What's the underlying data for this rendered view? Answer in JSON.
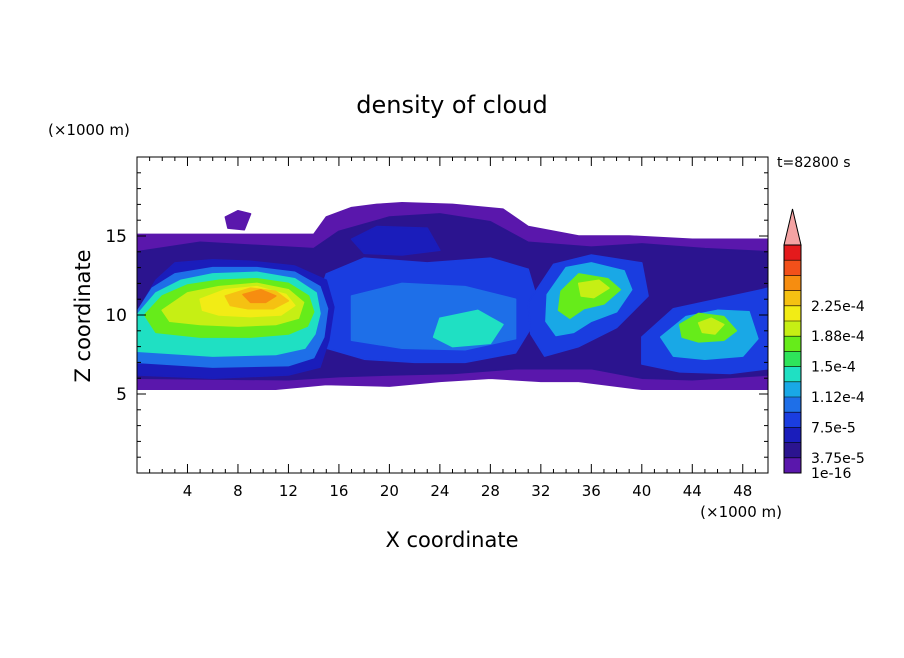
{
  "chart_data": {
    "type": "heatmap",
    "title": "density of cloud",
    "time_label": "t=82800 s",
    "xlabel": "X coordinate",
    "ylabel": "Z coordinate",
    "x_unit": "(×1000 m)",
    "z_unit": "(×1000 m)",
    "xlim": [
      0,
      50
    ],
    "ylim": [
      0,
      20
    ],
    "x_ticks": [
      4,
      8,
      12,
      16,
      20,
      24,
      28,
      32,
      36,
      40,
      44,
      48
    ],
    "y_ticks": [
      5,
      10,
      15
    ],
    "colorbar": {
      "labels": [
        "2.25e-4",
        "1.88e-4",
        "1.5e-4",
        "1.12e-4",
        "7.5e-5",
        "3.75e-5",
        "1e-16"
      ],
      "label_levels": [
        11,
        9,
        7,
        5,
        3,
        1,
        0
      ],
      "colors": [
        "#5a17ac",
        "#2b148f",
        "#1a1dbb",
        "#1a3de0",
        "#1e6fe8",
        "#19a8e6",
        "#1fe0c3",
        "#2ee45a",
        "#66ec1a",
        "#c6ef14",
        "#f2ec15",
        "#f5c112",
        "#f68d10",
        "#f2501a",
        "#e41a1c"
      ],
      "over_color": "#f4a3a3"
    },
    "regions": [
      {
        "name": "envelope",
        "level": 0,
        "points": [
          [
            0,
            15.1
          ],
          [
            14,
            15.1
          ],
          [
            15,
            16.2
          ],
          [
            17,
            16.8
          ],
          [
            19,
            17.0
          ],
          [
            21,
            17.1
          ],
          [
            25,
            17.0
          ],
          [
            29,
            16.7
          ],
          [
            31,
            15.6
          ],
          [
            35,
            15.0
          ],
          [
            39,
            15.0
          ],
          [
            44,
            14.8
          ],
          [
            50,
            14.8
          ],
          [
            50,
            5.3
          ],
          [
            40,
            5.3
          ],
          [
            35,
            5.8
          ],
          [
            32,
            5.8
          ],
          [
            28,
            6.0
          ],
          [
            24,
            5.8
          ],
          [
            20,
            5.5
          ],
          [
            15,
            5.6
          ],
          [
            11,
            5.3
          ],
          [
            0,
            5.3
          ]
        ]
      },
      {
        "name": "cloud-top-bump",
        "level": 0,
        "points": [
          [
            7,
            16.2
          ],
          [
            8,
            16.6
          ],
          [
            9,
            16.4
          ],
          [
            8.5,
            15.4
          ],
          [
            7.2,
            15.5
          ]
        ]
      },
      {
        "name": "mid-layer",
        "level": 1,
        "points": [
          [
            0,
            14.0
          ],
          [
            5,
            14.6
          ],
          [
            14,
            14.2
          ],
          [
            16,
            15.3
          ],
          [
            20,
            16.2
          ],
          [
            24,
            16.4
          ],
          [
            28,
            15.9
          ],
          [
            31,
            14.6
          ],
          [
            36,
            14.3
          ],
          [
            40,
            14.5
          ],
          [
            45,
            14.2
          ],
          [
            50,
            14.0
          ],
          [
            50,
            6.2
          ],
          [
            44,
            5.9
          ],
          [
            40,
            6.0
          ],
          [
            36,
            6.6
          ],
          [
            30,
            6.6
          ],
          [
            25,
            6.3
          ],
          [
            20,
            6.2
          ],
          [
            16,
            6.1
          ],
          [
            12,
            5.9
          ],
          [
            0,
            6.0
          ]
        ]
      },
      {
        "name": "upper-blue-patch",
        "level": 2,
        "points": [
          [
            17,
            14.8
          ],
          [
            19,
            15.6
          ],
          [
            23,
            15.5
          ],
          [
            24,
            14.1
          ],
          [
            21,
            13.8
          ],
          [
            18,
            13.9
          ]
        ]
      },
      {
        "name": "central-convective",
        "level": 3,
        "points": [
          [
            15,
            12.6
          ],
          [
            18,
            13.6
          ],
          [
            23,
            13.3
          ],
          [
            28,
            13.6
          ],
          [
            31,
            12.9
          ],
          [
            32,
            10.2
          ],
          [
            30,
            7.6
          ],
          [
            26,
            7.0
          ],
          [
            22,
            7.0
          ],
          [
            18,
            7.2
          ],
          [
            15,
            7.9
          ],
          [
            14,
            10.2
          ]
        ]
      },
      {
        "name": "east-tower-shell",
        "level": 3,
        "points": [
          [
            31,
            10.8
          ],
          [
            33,
            13.2
          ],
          [
            36,
            13.8
          ],
          [
            40,
            13.3
          ],
          [
            40.5,
            11.2
          ],
          [
            38,
            9.2
          ],
          [
            35,
            8.0
          ],
          [
            32.3,
            7.4
          ],
          [
            31.2,
            8.8
          ]
        ]
      },
      {
        "name": "central-mixed",
        "level": 4,
        "points": [
          [
            17,
            11.2
          ],
          [
            21,
            12.0
          ],
          [
            26,
            11.8
          ],
          [
            30,
            11.0
          ],
          [
            30,
            8.5
          ],
          [
            26,
            7.8
          ],
          [
            21,
            7.9
          ],
          [
            17,
            8.4
          ]
        ]
      },
      {
        "name": "central-cyan-core",
        "level": 6,
        "points": [
          [
            24,
            9.8
          ],
          [
            27,
            10.3
          ],
          [
            29,
            9.4
          ],
          [
            28,
            8.2
          ],
          [
            25,
            8.0
          ],
          [
            23.5,
            8.6
          ]
        ]
      },
      {
        "name": "far-east-cell",
        "level": 3,
        "points": [
          [
            40,
            8.6
          ],
          [
            42.5,
            10.4
          ],
          [
            46,
            11.0
          ],
          [
            49.5,
            11.6
          ],
          [
            50,
            11.7
          ],
          [
            50,
            6.6
          ],
          [
            47,
            6.3
          ],
          [
            43,
            6.4
          ],
          [
            40,
            6.9
          ]
        ]
      },
      {
        "name": "far-east-cell-inner",
        "level": 5,
        "points": [
          [
            41.5,
            8.6
          ],
          [
            43.5,
            9.9
          ],
          [
            46,
            10.3
          ],
          [
            48.5,
            10.2
          ],
          [
            49.2,
            8.5
          ],
          [
            48,
            7.4
          ],
          [
            45,
            7.2
          ],
          [
            42.5,
            7.4
          ]
        ]
      },
      {
        "name": "far-east-cell-core",
        "level": 8,
        "points": [
          [
            43,
            9.4
          ],
          [
            44.5,
            10.1
          ],
          [
            46.5,
            9.9
          ],
          [
            47.5,
            9.0
          ],
          [
            46.5,
            8.4
          ],
          [
            44.5,
            8.3
          ],
          [
            43.2,
            8.6
          ]
        ]
      },
      {
        "name": "far-east-cell-peak",
        "level": 9,
        "points": [
          [
            44.5,
            9.5
          ],
          [
            45.5,
            9.8
          ],
          [
            46.5,
            9.4
          ],
          [
            45.8,
            8.8
          ],
          [
            44.8,
            8.9
          ]
        ]
      },
      {
        "name": "east-tower",
        "level": 5,
        "points": [
          [
            32.5,
            11.3
          ],
          [
            34,
            13.0
          ],
          [
            36,
            13.3
          ],
          [
            38.6,
            12.8
          ],
          [
            39.2,
            11.6
          ],
          [
            38,
            10.2
          ],
          [
            36,
            9.6
          ],
          [
            34.6,
            8.9
          ],
          [
            33.2,
            8.7
          ],
          [
            32.4,
            9.6
          ]
        ]
      },
      {
        "name": "east-tower-core",
        "level": 8,
        "points": [
          [
            33.6,
            11.5
          ],
          [
            35,
            12.6
          ],
          [
            37.3,
            12.3
          ],
          [
            38.3,
            11.6
          ],
          [
            37,
            10.7
          ],
          [
            35.4,
            10.4
          ],
          [
            34.3,
            9.8
          ],
          [
            33.4,
            10.3
          ]
        ]
      },
      {
        "name": "east-tower-peak",
        "level": 9,
        "points": [
          [
            35,
            12.0
          ],
          [
            36.6,
            12.2
          ],
          [
            37.4,
            11.7
          ],
          [
            36.2,
            11.1
          ],
          [
            35.2,
            11.2
          ]
        ]
      },
      {
        "name": "west-cell-shell",
        "level": 2,
        "points": [
          [
            0,
            10.2
          ],
          [
            1.5,
            12.2
          ],
          [
            3,
            13.3
          ],
          [
            6,
            13.5
          ],
          [
            9,
            13.4
          ],
          [
            12.5,
            13.1
          ],
          [
            15,
            12.2
          ],
          [
            15.6,
            10.5
          ],
          [
            15.2,
            8.4
          ],
          [
            14.5,
            6.7
          ],
          [
            12,
            6.2
          ],
          [
            6,
            6.0
          ],
          [
            0,
            6.2
          ]
        ]
      },
      {
        "name": "west-cell-l4",
        "level": 4,
        "points": [
          [
            0,
            10.2
          ],
          [
            1.2,
            11.7
          ],
          [
            3,
            12.6
          ],
          [
            6,
            13.0
          ],
          [
            9.5,
            13.0
          ],
          [
            12.5,
            12.7
          ],
          [
            14.5,
            11.8
          ],
          [
            15.1,
            10.4
          ],
          [
            14.8,
            8.6
          ],
          [
            14,
            7.3
          ],
          [
            12,
            6.8
          ],
          [
            6,
            6.7
          ],
          [
            0,
            7.0
          ]
        ]
      },
      {
        "name": "west-cell-l6",
        "level": 6,
        "points": [
          [
            0,
            10.0
          ],
          [
            1.5,
            11.4
          ],
          [
            3.5,
            12.2
          ],
          [
            6,
            12.6
          ],
          [
            9.5,
            12.7
          ],
          [
            12.5,
            12.3
          ],
          [
            14.2,
            11.4
          ],
          [
            14.5,
            10.1
          ],
          [
            14.1,
            8.8
          ],
          [
            13.3,
            7.9
          ],
          [
            11,
            7.5
          ],
          [
            6,
            7.4
          ],
          [
            0,
            7.7
          ]
        ]
      },
      {
        "name": "west-cell-l8",
        "level": 8,
        "points": [
          [
            0.6,
            10.0
          ],
          [
            2,
            11.2
          ],
          [
            4,
            11.9
          ],
          [
            6.5,
            12.2
          ],
          [
            9.5,
            12.3
          ],
          [
            12,
            12.0
          ],
          [
            13.6,
            11.2
          ],
          [
            14,
            10.2
          ],
          [
            13.5,
            9.3
          ],
          [
            12,
            8.8
          ],
          [
            9,
            8.6
          ],
          [
            5,
            8.6
          ],
          [
            1.5,
            8.9
          ]
        ]
      },
      {
        "name": "west-cell-l9",
        "level": 9,
        "points": [
          [
            2,
            10.3
          ],
          [
            4,
            11.4
          ],
          [
            6.5,
            11.8
          ],
          [
            9.5,
            12.0
          ],
          [
            12,
            11.6
          ],
          [
            13.2,
            10.8
          ],
          [
            12.8,
            9.8
          ],
          [
            11,
            9.4
          ],
          [
            8,
            9.3
          ],
          [
            5,
            9.4
          ],
          [
            2.6,
            9.6
          ]
        ]
      },
      {
        "name": "west-cell-l10",
        "level": 10,
        "points": [
          [
            5,
            11.0
          ],
          [
            7,
            11.6
          ],
          [
            9.5,
            11.8
          ],
          [
            11.8,
            11.3
          ],
          [
            12.5,
            10.6
          ],
          [
            11.4,
            10.0
          ],
          [
            9,
            9.9
          ],
          [
            6.5,
            10.0
          ],
          [
            5.2,
            10.3
          ]
        ]
      },
      {
        "name": "west-cell-l11",
        "level": 11,
        "points": [
          [
            7,
            11.2
          ],
          [
            9,
            11.7
          ],
          [
            11,
            11.5
          ],
          [
            12,
            10.9
          ],
          [
            10.8,
            10.4
          ],
          [
            8.8,
            10.4
          ],
          [
            7.4,
            10.6
          ]
        ]
      },
      {
        "name": "west-cell-l12",
        "level": 12,
        "points": [
          [
            8.4,
            11.3
          ],
          [
            9.8,
            11.6
          ],
          [
            11,
            11.2
          ],
          [
            10.2,
            10.8
          ],
          [
            9,
            10.8
          ]
        ]
      }
    ]
  }
}
